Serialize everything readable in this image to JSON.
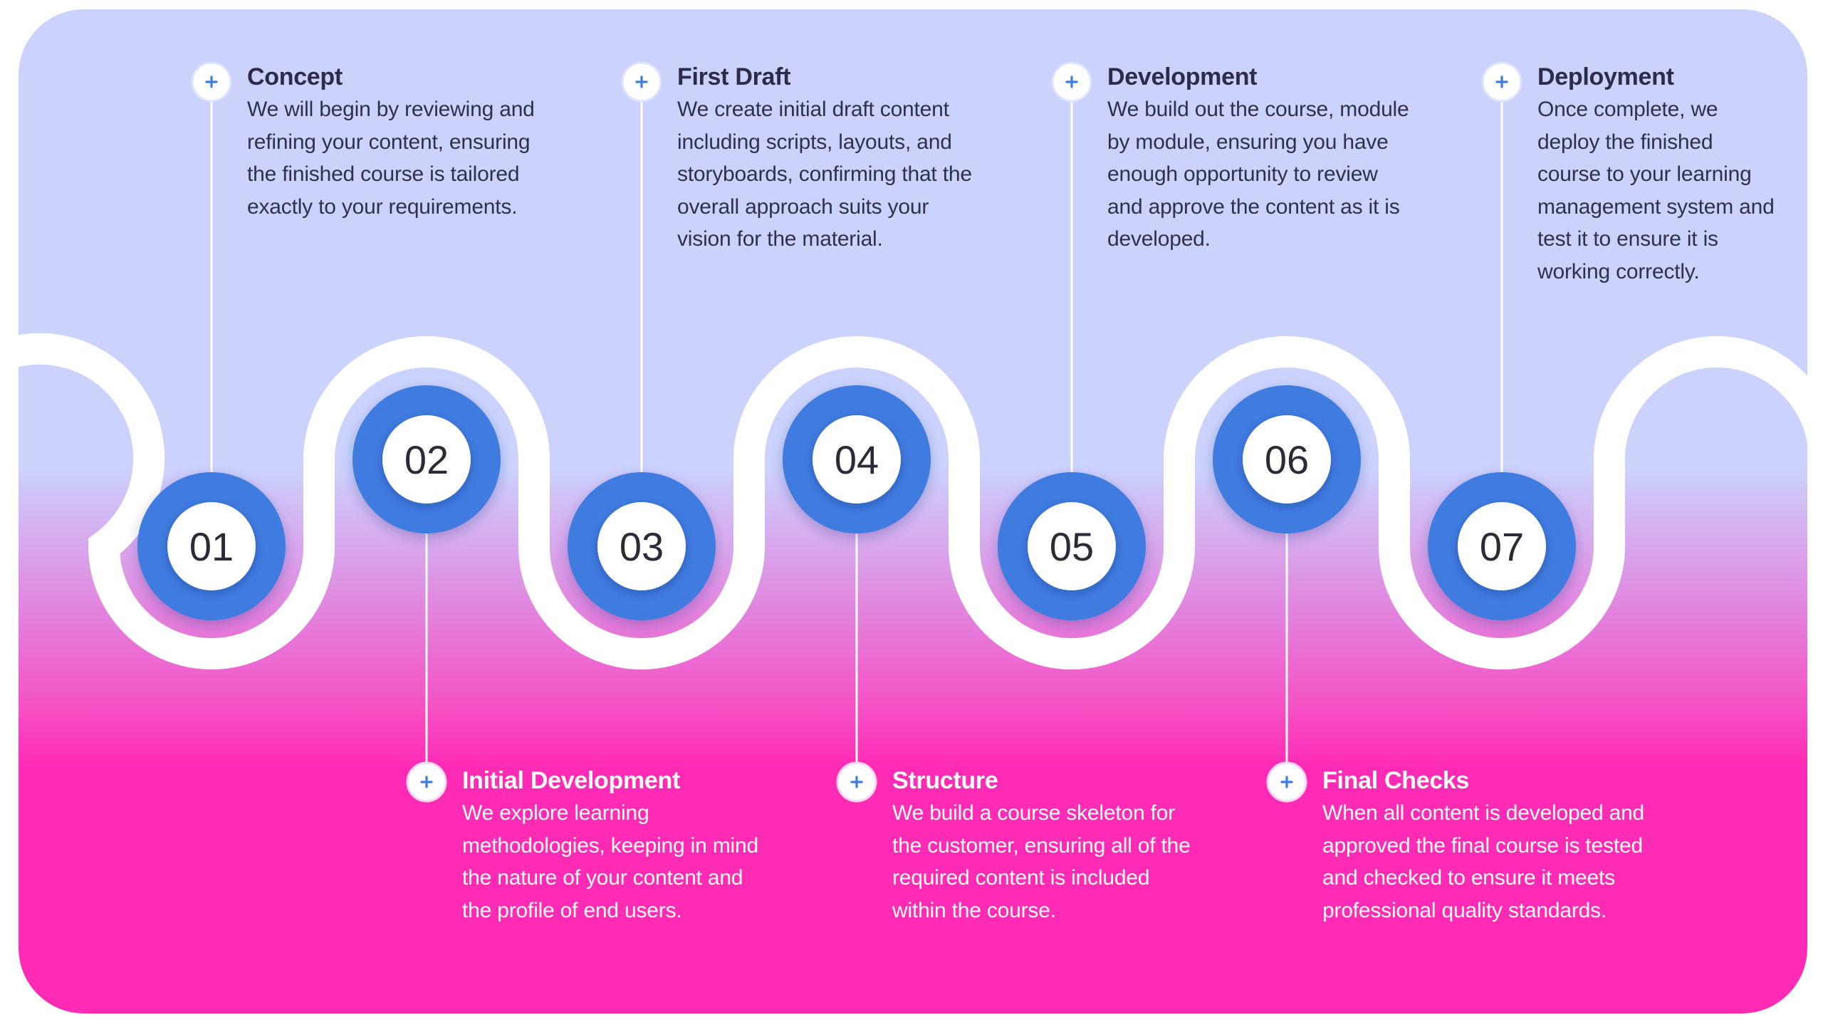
{
  "colors": {
    "background_top": "#cbd3fd",
    "background_bottom": "#ff2bb4",
    "node_ring": "#3f7be0",
    "node_center": "#ffffff",
    "connector": "#ffffff",
    "path": "#ffffff",
    "number_text": "#2b2b38"
  },
  "icons": {
    "marker": "plus-icon"
  },
  "steps": [
    {
      "number": "01",
      "title": "Concept",
      "position": "top",
      "lines": [
        "We will begin by reviewing and",
        "refining your content, ensuring",
        "the finished course is tailored",
        "exactly to your requirements."
      ]
    },
    {
      "number": "02",
      "title": "Initial Development",
      "position": "bottom",
      "lines": [
        "We explore learning",
        "methodologies, keeping in mind",
        "the nature of your content and",
        "the profile of end users."
      ]
    },
    {
      "number": "03",
      "title": "First Draft",
      "position": "top",
      "lines": [
        "We create initial draft content",
        "including scripts, layouts, and",
        "storyboards, confirming that the",
        "overall approach suits your",
        "vision for the material."
      ]
    },
    {
      "number": "04",
      "title": "Structure",
      "position": "bottom",
      "lines": [
        "We build a course skeleton for",
        "the customer, ensuring all of the",
        "required content is included",
        "within the course."
      ]
    },
    {
      "number": "05",
      "title": "Development",
      "position": "top",
      "lines": [
        "We build out the course, module",
        "by module, ensuring you have",
        "enough opportunity to review",
        "and approve the content as it is",
        "developed."
      ]
    },
    {
      "number": "06",
      "title": "Final Checks",
      "position": "bottom",
      "lines": [
        "When all content is developed and",
        "approved the final course is tested",
        "and checked to ensure it meets",
        "professional quality standards."
      ]
    },
    {
      "number": "07",
      "title": "Deployment",
      "position": "top",
      "lines": [
        "Once complete, we",
        "deploy the finished",
        "course to your learning",
        "management system and",
        "test it to ensure it is",
        "working correctly."
      ]
    }
  ]
}
